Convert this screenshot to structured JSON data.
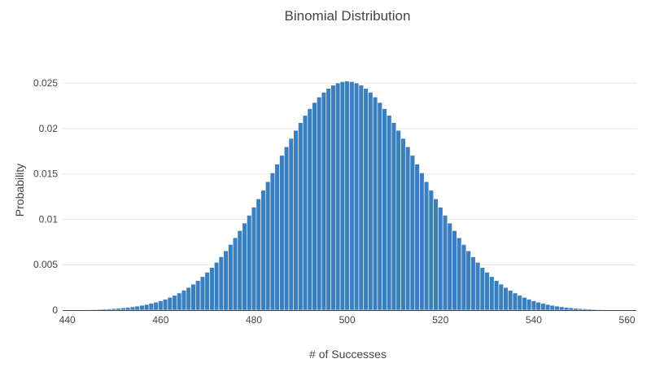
{
  "chart_data": {
    "type": "bar",
    "title": "Binomial Distribution",
    "xlabel": "# of Successes",
    "ylabel": "Probability",
    "n": 1000,
    "p": 0.5,
    "xlim": [
      439,
      562
    ],
    "ylim": [
      0,
      0.0252
    ],
    "xticks": [
      440,
      460,
      480,
      500,
      520,
      540,
      560
    ],
    "yticks": [
      0,
      0.005,
      0.01,
      0.015,
      0.02,
      0.025
    ],
    "ytick_labels": [
      "0",
      "0.005",
      "0.01",
      "0.015",
      "0.02",
      "0.025"
    ],
    "grid": true,
    "bar_color": "#3a7fbf",
    "bar_edge_color": "#ffffff"
  }
}
